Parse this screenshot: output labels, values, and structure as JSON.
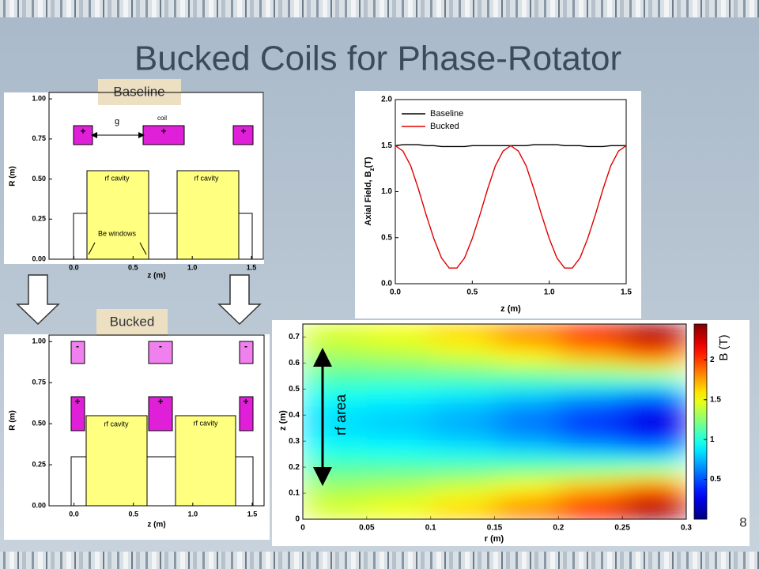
{
  "title": "Bucked Coils  for Phase-Rotator",
  "labels": [
    "Baseline",
    "Bucked"
  ],
  "page_number": "8",
  "chart_data": [
    {
      "type": "diagram",
      "x_label": "z (m)",
      "y_label": "R (m)",
      "xlim": [
        -0.21,
        1.6
      ],
      "ylim": [
        0,
        1.04
      ],
      "xticks": [
        {
          "value": 0,
          "label": "0.0"
        },
        {
          "value": 0.5,
          "label": "0.5"
        },
        {
          "value": 1,
          "label": "1.0"
        },
        {
          "value": 1.5,
          "label": "1.5"
        }
      ],
      "yticks": [
        {
          "value": 0,
          "label": "0.00"
        },
        {
          "value": 0.25,
          "label": "0.25"
        },
        {
          "value": 0.5,
          "label": "0.50"
        },
        {
          "value": 0.75,
          "label": "0.75"
        },
        {
          "value": 1,
          "label": "1.00"
        }
      ],
      "annotations": [
        "g",
        "coil",
        "rf cavity",
        "rf cavity",
        "Be windows"
      ],
      "coil_signs": [
        "+",
        "+",
        "+"
      ]
    },
    {
      "type": "diagram",
      "x_label": "z (m)",
      "y_label": "R (m)",
      "xlim": [
        -0.21,
        1.6
      ],
      "ylim": [
        0,
        1.04
      ],
      "xticks": [
        {
          "value": 0,
          "label": "0.0"
        },
        {
          "value": 0.5,
          "label": "0.5"
        },
        {
          "value": 1,
          "label": "1.0"
        },
        {
          "value": 1.5,
          "label": "1.5"
        }
      ],
      "yticks": [
        {
          "value": 0,
          "label": "0.00"
        },
        {
          "value": 0.25,
          "label": "0.25"
        },
        {
          "value": 0.5,
          "label": "0.50"
        },
        {
          "value": 0.75,
          "label": "0.75"
        },
        {
          "value": 1,
          "label": "1.00"
        }
      ],
      "annotations": [
        "rf cavity",
        "rf cavity"
      ],
      "coil_signs": [
        "-",
        "-",
        "-",
        "+",
        "+",
        "+"
      ]
    },
    {
      "type": "line",
      "x_label": "z (m)",
      "y_label": "Axial Field, B",
      "y_label_sub": "z",
      "y_label_unit": "(T)",
      "xlim": [
        0,
        1.5
      ],
      "ylim": [
        0,
        2
      ],
      "xticks": [
        {
          "value": 0,
          "label": "0.0"
        },
        {
          "value": 0.5,
          "label": "0.5"
        },
        {
          "value": 1,
          "label": "1.0"
        },
        {
          "value": 1.5,
          "label": "1.5"
        }
      ],
      "yticks": [
        {
          "value": 0,
          "label": "0.0"
        },
        {
          "value": 0.5,
          "label": "0.5"
        },
        {
          "value": 1,
          "label": "1.0"
        },
        {
          "value": 1.5,
          "label": "1.5"
        },
        {
          "value": 2,
          "label": "2.0"
        }
      ],
      "legend": "upper left",
      "x": [
        0,
        0.05,
        0.1,
        0.15,
        0.2,
        0.25,
        0.3,
        0.35,
        0.4,
        0.45,
        0.5,
        0.55,
        0.6,
        0.65,
        0.7,
        0.75,
        0.8,
        0.85,
        0.9,
        0.95,
        1,
        1.05,
        1.1,
        1.15,
        1.2,
        1.25,
        1.3,
        1.35,
        1.4,
        1.45,
        1.5
      ],
      "series": [
        {
          "name": "Baseline",
          "color": "#000000",
          "values": [
            1.5,
            1.51,
            1.51,
            1.51,
            1.5,
            1.5,
            1.49,
            1.49,
            1.49,
            1.49,
            1.5,
            1.5,
            1.5,
            1.5,
            1.5,
            1.5,
            1.5,
            1.5,
            1.51,
            1.51,
            1.51,
            1.51,
            1.5,
            1.5,
            1.5,
            1.49,
            1.49,
            1.49,
            1.5,
            1.5,
            1.5
          ]
        },
        {
          "name": "Bucked",
          "color": "#e00000",
          "values": [
            1.5,
            1.44,
            1.28,
            1.03,
            0.75,
            0.49,
            0.28,
            0.17,
            0.17,
            0.28,
            0.49,
            0.75,
            1.03,
            1.28,
            1.44,
            1.5,
            1.44,
            1.28,
            1.03,
            0.75,
            0.49,
            0.28,
            0.17,
            0.17,
            0.28,
            0.49,
            0.75,
            1.03,
            1.28,
            1.44,
            1.5
          ]
        }
      ]
    },
    {
      "type": "heatmap",
      "x_label": "r (m)",
      "y_label": "z (m)",
      "xlim": [
        0,
        0.3
      ],
      "ylim": [
        0,
        0.75
      ],
      "xticks": [
        0,
        0.05,
        0.1,
        0.15,
        0.2,
        0.25,
        0.3
      ],
      "yticks": [
        0,
        0.1,
        0.2,
        0.3,
        0.4,
        0.5,
        0.6,
        0.7
      ],
      "xbins": [
        0,
        0.05,
        0.1,
        0.15,
        0.2,
        0.25,
        0.3
      ],
      "ybins": [
        0,
        0.05,
        0.1,
        0.15,
        0.2,
        0.25,
        0.3,
        0.35,
        0.4,
        0.45,
        0.5,
        0.55,
        0.6,
        0.65,
        0.7,
        0.75
      ],
      "values": [
        [
          1.45,
          1.51,
          1.64,
          1.83,
          2.08,
          2.39
        ],
        [
          1.4,
          1.45,
          1.56,
          1.72,
          1.94,
          2.21
        ],
        [
          1.3,
          1.34,
          1.42,
          1.53,
          1.68,
          1.87
        ],
        [
          1.18,
          1.2,
          1.23,
          1.28,
          1.35,
          1.43
        ],
        [
          1.06,
          1.05,
          1.04,
          1.03,
          1.0,
          0.98
        ],
        [
          0.95,
          0.92,
          0.87,
          0.8,
          0.7,
          0.58
        ],
        [
          0.87,
          0.83,
          0.76,
          0.65,
          0.5,
          0.31
        ],
        [
          0.84,
          0.8,
          0.72,
          0.59,
          0.43,
          0.22
        ],
        [
          0.87,
          0.83,
          0.76,
          0.65,
          0.5,
          0.31
        ],
        [
          0.95,
          0.92,
          0.87,
          0.8,
          0.7,
          0.58
        ],
        [
          1.06,
          1.05,
          1.04,
          1.03,
          1.0,
          0.98
        ],
        [
          1.18,
          1.2,
          1.23,
          1.28,
          1.35,
          1.43
        ],
        [
          1.3,
          1.34,
          1.42,
          1.53,
          1.68,
          1.87
        ],
        [
          1.4,
          1.45,
          1.56,
          1.72,
          1.94,
          2.21
        ],
        [
          1.45,
          1.51,
          1.64,
          1.83,
          2.08,
          2.39
        ]
      ],
      "colormap": "jet",
      "clim": [
        0,
        2.45
      ],
      "cticks": [
        0.5,
        1,
        1.5,
        2
      ],
      "colorbar_label": "B (T)",
      "annotation": "rf area"
    }
  ]
}
